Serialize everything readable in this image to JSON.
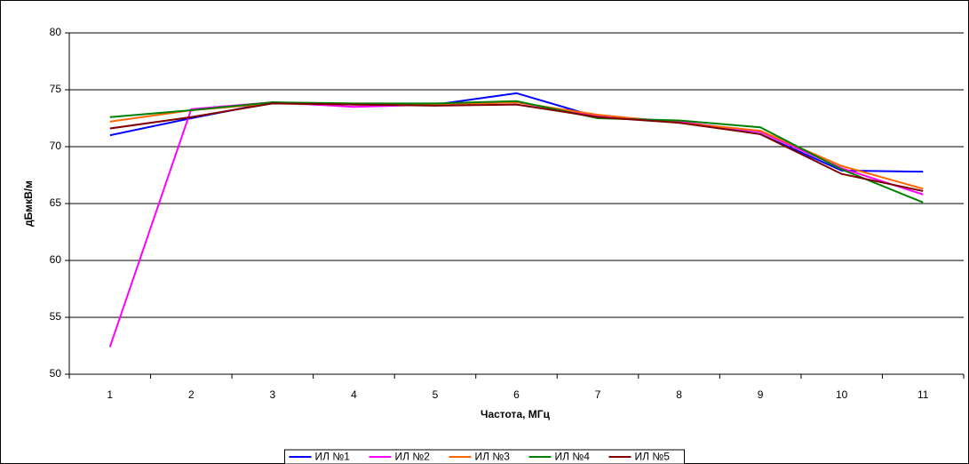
{
  "chart_data": {
    "type": "line",
    "x_label": "Частота, МГц",
    "y_label": "дБмкВ/м",
    "categories": [
      "1",
      "2",
      "3",
      "4",
      "5",
      "6",
      "7",
      "8",
      "9",
      "10",
      "11"
    ],
    "series": [
      {
        "name": "ИЛ №1",
        "color": "#0000ff",
        "values": [
          71.0,
          72.5,
          73.9,
          73.7,
          73.7,
          74.7,
          72.6,
          72.2,
          71.1,
          67.9,
          67.8
        ]
      },
      {
        "name": "ИЛ №2",
        "color": "#ff00ff",
        "values": [
          52.4,
          73.3,
          73.9,
          73.5,
          73.7,
          73.9,
          72.7,
          72.2,
          71.3,
          68.1,
          65.8
        ]
      },
      {
        "name": "ИЛ №3",
        "color": "#ff6600",
        "values": [
          72.2,
          73.2,
          73.8,
          73.7,
          73.7,
          73.9,
          72.8,
          72.1,
          71.4,
          68.3,
          66.3
        ]
      },
      {
        "name": "ИЛ №4",
        "color": "#008000",
        "values": [
          72.6,
          73.2,
          73.9,
          73.8,
          73.8,
          74.0,
          72.5,
          72.3,
          71.7,
          68.0,
          65.1
        ]
      },
      {
        "name": "ИЛ №5",
        "color": "#800000",
        "values": [
          71.6,
          72.6,
          73.8,
          73.7,
          73.6,
          73.7,
          72.6,
          72.1,
          71.1,
          67.6,
          66.1
        ]
      }
    ],
    "ylim": [
      50,
      80
    ],
    "yticks": [
      50,
      55,
      60,
      65,
      70,
      75,
      80
    ],
    "grid": true,
    "legend": "bottom"
  }
}
